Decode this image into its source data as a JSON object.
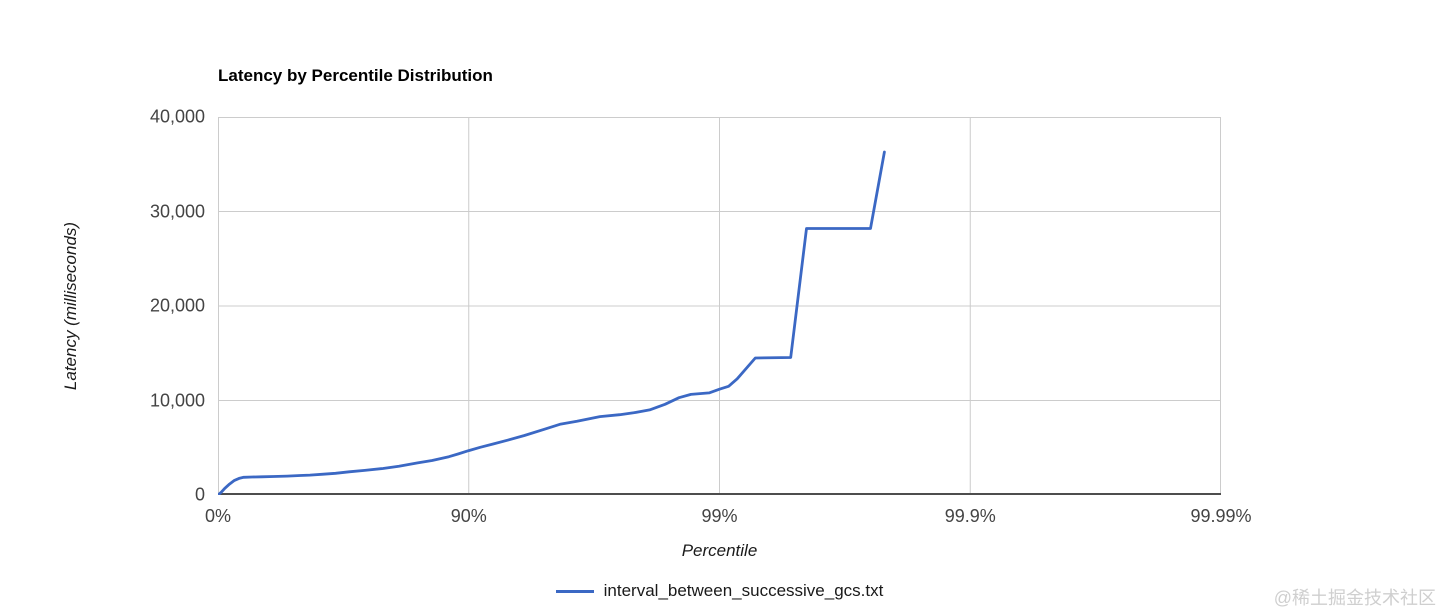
{
  "page": {
    "watermark": "@稀土掘金技术社区"
  },
  "chart_data": {
    "type": "line",
    "title": "Latency by Percentile Distribution",
    "xlabel": "Percentile",
    "ylabel": "Latency (milliseconds)",
    "x_scale": "log10(1/(1-percentile)) HdrHistogram percentile axis",
    "x_ticks": [
      {
        "label": "0%",
        "decade": 0
      },
      {
        "label": "90%",
        "decade": 1
      },
      {
        "label": "99%",
        "decade": 2
      },
      {
        "label": "99.9%",
        "decade": 3
      },
      {
        "label": "99.99%",
        "decade": 4
      }
    ],
    "y_ticks": [
      {
        "label": "0",
        "value": 0
      },
      {
        "label": "10,000",
        "value": 10000
      },
      {
        "label": "20,000",
        "value": 20000
      },
      {
        "label": "30,000",
        "value": 30000
      },
      {
        "label": "40,000",
        "value": 40000
      }
    ],
    "ylim": [
      0,
      40000
    ],
    "x_decades": [
      0,
      4
    ],
    "grid": true,
    "legend_position": "bottom",
    "colors": {
      "line": "#3B68C4",
      "grid": "#cccccc",
      "axis": "#4d4d4d",
      "tick_text": "#444444",
      "title_text": "#000000",
      "watermark": "#cfcfcf"
    },
    "series": [
      {
        "name": "interval_between_successive_gcs.txt",
        "color": "#3B68C4",
        "points": [
          [
            0,
            0
          ],
          [
            3,
            300
          ],
          [
            6,
            700
          ],
          [
            10,
            1150
          ],
          [
            14,
            1550
          ],
          [
            18,
            1780
          ],
          [
            21,
            1870
          ],
          [
            27,
            1910
          ],
          [
            33,
            1930
          ],
          [
            40,
            1960
          ],
          [
            47,
            2000
          ],
          [
            53,
            2060
          ],
          [
            57,
            2110
          ],
          [
            62,
            2200
          ],
          [
            66,
            2300
          ],
          [
            70,
            2450
          ],
          [
            74,
            2600
          ],
          [
            78,
            2800
          ],
          [
            81,
            3050
          ],
          [
            84,
            3400
          ],
          [
            86,
            3650
          ],
          [
            88,
            4050
          ],
          [
            89,
            4350
          ],
          [
            90,
            4700
          ],
          [
            91,
            5050
          ],
          [
            92,
            5400
          ],
          [
            93,
            5800
          ],
          [
            94,
            6300
          ],
          [
            95,
            6950
          ],
          [
            95.7,
            7500
          ],
          [
            96.3,
            7800
          ],
          [
            97,
            8300
          ],
          [
            97.5,
            8500
          ],
          [
            97.8,
            8700
          ],
          [
            98.1,
            9000
          ],
          [
            98.35,
            9600
          ],
          [
            98.55,
            10300
          ],
          [
            98.7,
            10650
          ],
          [
            98.9,
            10800
          ],
          [
            99,
            11200
          ],
          [
            99.08,
            11500
          ],
          [
            99.15,
            12300
          ],
          [
            99.28,
            14500
          ],
          [
            99.48,
            14550
          ],
          [
            99.55,
            28200
          ],
          [
            99.75,
            28200
          ],
          [
            99.78,
            36300
          ]
        ]
      }
    ]
  }
}
